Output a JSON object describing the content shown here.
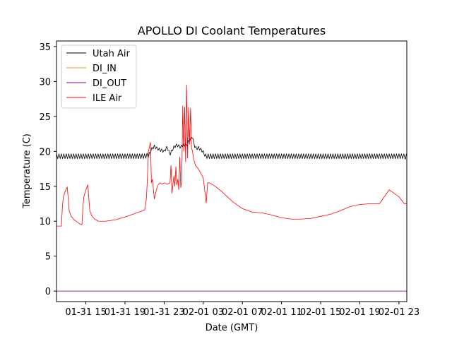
{
  "chart_data": {
    "type": "line",
    "title": "APOLLO DI Coolant Temperatures",
    "xlabel": "Date (GMT)",
    "ylabel": "Temperature (C)",
    "x_unit": "hours since 01-31 00:00 GMT",
    "xlim": [
      12.0,
      47.8
    ],
    "ylim": [
      -1.5,
      35.8
    ],
    "grid": false,
    "legend_position": "upper-left",
    "x_ticks": [
      {
        "value": 15,
        "label": "01-31 15"
      },
      {
        "value": 19,
        "label": "01-31 19"
      },
      {
        "value": 23,
        "label": "01-31 23"
      },
      {
        "value": 27,
        "label": "02-01 03"
      },
      {
        "value": 31,
        "label": "02-01 07"
      },
      {
        "value": 35,
        "label": "02-01 11"
      },
      {
        "value": 39,
        "label": "02-01 15"
      },
      {
        "value": 43,
        "label": "02-01 19"
      },
      {
        "value": 47,
        "label": "02-01 23"
      }
    ],
    "y_ticks": [
      {
        "value": 0,
        "label": "0"
      },
      {
        "value": 5,
        "label": "5"
      },
      {
        "value": 10,
        "label": "10"
      },
      {
        "value": 15,
        "label": "15"
      },
      {
        "value": 20,
        "label": "20"
      },
      {
        "value": 25,
        "label": "25"
      },
      {
        "value": 30,
        "label": "30"
      },
      {
        "value": 35,
        "label": "35"
      }
    ],
    "series": [
      {
        "name": "Utah Air",
        "color": "#000000",
        "oscillation": {
          "period": 0.25,
          "amplitude": 0.35,
          "except_ranges": [
            [
              21.6,
              27.2
            ]
          ]
        },
        "x": [
          12.0,
          14.0,
          16.0,
          18.0,
          20.0,
          21.0,
          21.5,
          21.7,
          22.0,
          22.3,
          22.6,
          23.0,
          23.3,
          23.6,
          24.0,
          24.3,
          24.7,
          25.0,
          25.3,
          25.6,
          25.9,
          26.1,
          26.3,
          26.5,
          26.8,
          27.0,
          27.2,
          28.0,
          30.0,
          32.0,
          34.0,
          36.0,
          38.0,
          40.0,
          42.0,
          44.0,
          46.0,
          47.6,
          47.7,
          47.8
        ],
        "y": [
          19.3,
          19.3,
          19.3,
          19.3,
          19.3,
          19.3,
          19.5,
          20.3,
          20.7,
          20.4,
          20.2,
          20.0,
          20.6,
          19.6,
          20.6,
          20.9,
          20.6,
          21.0,
          20.8,
          21.6,
          22.1,
          20.8,
          20.4,
          20.5,
          20.2,
          19.9,
          19.3,
          19.3,
          19.3,
          19.3,
          19.3,
          19.3,
          19.3,
          19.3,
          19.3,
          19.3,
          19.3,
          19.3,
          19.0,
          19.6
        ]
      },
      {
        "name": "DI_IN",
        "color": "#d4a017",
        "x": [
          12.0,
          47.8
        ],
        "y": [
          0.0,
          0.0
        ]
      },
      {
        "name": "DI_OUT",
        "color": "#800080",
        "x": [
          12.0,
          47.8
        ],
        "y": [
          0.0,
          0.0
        ]
      },
      {
        "name": "ILE Air",
        "color": "#ff0000",
        "x": [
          12.0,
          12.3,
          12.5,
          12.6,
          12.7,
          12.9,
          13.1,
          13.3,
          13.5,
          13.8,
          14.1,
          14.4,
          14.6,
          14.7,
          14.8,
          15.0,
          15.2,
          15.4,
          15.6,
          15.9,
          16.3,
          17.0,
          18.0,
          19.0,
          20.0,
          21.0,
          21.1,
          21.2,
          21.3,
          21.4,
          21.6,
          21.7,
          21.8,
          22.0,
          22.3,
          22.5,
          22.6,
          22.8,
          23.0,
          23.3,
          23.6,
          23.7,
          23.8,
          24.0,
          24.1,
          24.2,
          24.3,
          24.4,
          24.5,
          24.6,
          24.7,
          24.8,
          24.9,
          25.0,
          25.1,
          25.2,
          25.3,
          25.4,
          25.5,
          25.6,
          25.7,
          25.8,
          25.9,
          26.0,
          26.2,
          26.5,
          27.0,
          27.3,
          27.4,
          27.45,
          27.6,
          28.0,
          28.5,
          29.0,
          30.0,
          31.0,
          32.0,
          33.0,
          34.0,
          35.0,
          36.0,
          37.0,
          38.0,
          39.0,
          40.0,
          41.0,
          42.0,
          43.0,
          44.0,
          45.0,
          46.0,
          47.0,
          47.55,
          47.6,
          47.65,
          47.7,
          47.8
        ],
        "y": [
          9.3,
          9.3,
          9.3,
          12.0,
          13.5,
          14.3,
          14.9,
          11.5,
          10.7,
          10.2,
          9.9,
          9.6,
          9.5,
          12.0,
          13.5,
          14.5,
          15.2,
          11.5,
          10.8,
          10.3,
          10.0,
          10.0,
          10.2,
          10.6,
          11.1,
          11.6,
          12.2,
          13.5,
          16.5,
          20.0,
          21.3,
          15.5,
          16.0,
          13.2,
          15.0,
          15.4,
          15.5,
          15.3,
          15.5,
          15.3,
          15.5,
          18.0,
          14.0,
          16.5,
          15.0,
          17.8,
          15.2,
          16.0,
          14.5,
          19.2,
          14.8,
          15.8,
          26.5,
          20.0,
          26.3,
          18.5,
          29.5,
          19.0,
          26.3,
          21.0,
          26.2,
          20.5,
          20.0,
          19.0,
          18.0,
          17.5,
          16.2,
          12.6,
          14.5,
          15.5,
          15.5,
          15.2,
          14.7,
          14.1,
          12.8,
          11.8,
          11.3,
          11.2,
          10.9,
          10.5,
          10.3,
          10.3,
          10.4,
          10.7,
          11.0,
          11.5,
          12.1,
          12.4,
          12.5,
          12.5,
          14.5,
          13.5,
          12.5,
          12.5,
          12.5,
          12.5,
          12.5
        ]
      }
    ]
  }
}
